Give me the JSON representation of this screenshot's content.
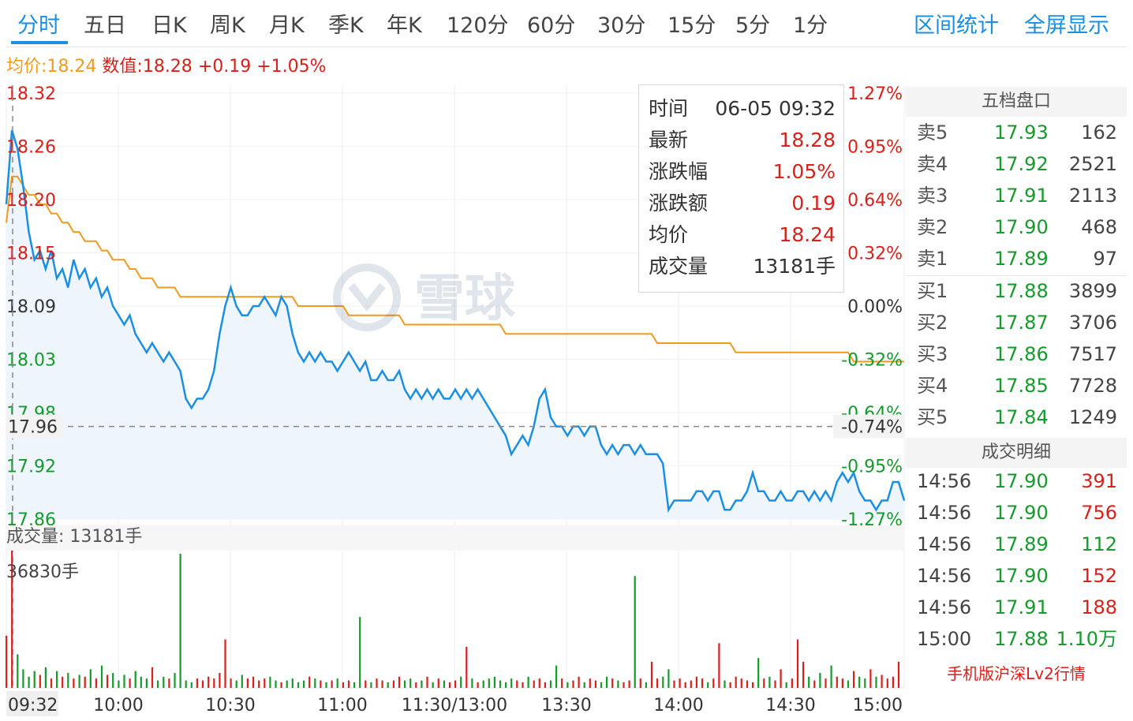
{
  "tabs": [
    "分时",
    "五日",
    "日K",
    "周K",
    "月K",
    "季K",
    "年K",
    "120分",
    "60分",
    "30分",
    "15分",
    "5分",
    "1分"
  ],
  "tools": [
    "区间统计",
    "全屏显示"
  ],
  "info": {
    "avg": "均价:18.24",
    "value": "数值:18.28",
    "change": "+0.19",
    "pct": "+1.05%"
  },
  "tooltip": [
    {
      "k": "时间",
      "v": "06-05 09:32",
      "color": "#333333"
    },
    {
      "k": "最新",
      "v": "18.28",
      "color": "#d9201b"
    },
    {
      "k": "涨跌幅",
      "v": "1.05%",
      "color": "#d9201b"
    },
    {
      "k": "涨跌额",
      "v": "0.19",
      "color": "#d9201b"
    },
    {
      "k": "均价",
      "v": "18.24",
      "color": "#d9201b"
    },
    {
      "k": "成交量",
      "v": "13181手",
      "color": "#333333"
    }
  ],
  "order_book": {
    "title": "五档盘口",
    "rows": [
      {
        "l": "卖5",
        "p": "17.93",
        "q": "162"
      },
      {
        "l": "卖4",
        "p": "17.92",
        "q": "2521"
      },
      {
        "l": "卖3",
        "p": "17.91",
        "q": "2113"
      },
      {
        "l": "卖2",
        "p": "17.90",
        "q": "468"
      },
      {
        "l": "卖1",
        "p": "17.89",
        "q": "97"
      },
      {
        "l": "买1",
        "p": "17.88",
        "q": "3899"
      },
      {
        "l": "买2",
        "p": "17.87",
        "q": "3706"
      },
      {
        "l": "买3",
        "p": "17.86",
        "q": "7517"
      },
      {
        "l": "买4",
        "p": "17.85",
        "q": "7728"
      },
      {
        "l": "买5",
        "p": "17.84",
        "q": "1249"
      }
    ]
  },
  "trades": {
    "title": "成交明细",
    "rows": [
      {
        "t": "14:56",
        "p": "17.90",
        "q": "391",
        "pc": "#159a2c",
        "qc": "#d9201b"
      },
      {
        "t": "14:56",
        "p": "17.90",
        "q": "756",
        "pc": "#159a2c",
        "qc": "#d9201b"
      },
      {
        "t": "14:56",
        "p": "17.89",
        "q": "112",
        "pc": "#159a2c",
        "qc": "#159a2c"
      },
      {
        "t": "14:56",
        "p": "17.90",
        "q": "152",
        "pc": "#159a2c",
        "qc": "#d9201b"
      },
      {
        "t": "14:56",
        "p": "17.91",
        "q": "188",
        "pc": "#159a2c",
        "qc": "#d9201b"
      },
      {
        "t": "15:00",
        "p": "17.88",
        "q": "1.10万",
        "pc": "#159a2c",
        "qc": "#159a2c"
      }
    ]
  },
  "lv2_link": "手机版沪深Lv2行情",
  "watermark_text": "雪球",
  "colors": {
    "up": "#d9201b",
    "down": "#159a2c",
    "price_line": "#1a8fe3",
    "avg_line": "#f09a1e"
  },
  "chart_data": {
    "type": "line",
    "prev_close": 18.09,
    "y_ticks": [
      "18.32",
      "18.26",
      "18.20",
      "18.15",
      "18.09",
      "18.03",
      "17.98",
      "17.92",
      "17.86"
    ],
    "pct_ticks": [
      "1.27%",
      "0.95%",
      "0.64%",
      "0.32%",
      "0.00%",
      "-0.32%",
      "-0.64%",
      "-0.95%",
      "-1.27%"
    ],
    "x_ticks": [
      "09:32",
      "10:00",
      "10:30",
      "11:00",
      "11:30/13:00",
      "13:30",
      "14:00",
      "14:30",
      "15:00"
    ],
    "ylim": [
      17.86,
      18.32
    ],
    "crosshair_price": "17.96",
    "crosshair_pct": "-0.74%",
    "volume_label": "成交量: 13181手",
    "volume_max_label": "36830手",
    "volume_max": 36830,
    "price": [
      18.2,
      18.28,
      18.26,
      18.22,
      18.17,
      18.14,
      18.15,
      18.13,
      18.15,
      18.12,
      18.13,
      18.11,
      18.14,
      18.12,
      18.13,
      18.11,
      18.12,
      18.1,
      18.11,
      18.09,
      18.08,
      18.07,
      18.08,
      18.06,
      18.05,
      18.04,
      18.05,
      18.04,
      18.03,
      18.04,
      18.03,
      18.02,
      17.99,
      17.98,
      17.99,
      17.99,
      18.0,
      18.02,
      18.06,
      18.09,
      18.11,
      18.09,
      18.08,
      18.08,
      18.09,
      18.09,
      18.1,
      18.09,
      18.08,
      18.1,
      18.09,
      18.06,
      18.04,
      18.03,
      18.04,
      18.03,
      18.04,
      18.03,
      18.03,
      18.02,
      18.03,
      18.04,
      18.03,
      18.02,
      18.03,
      18.01,
      18.01,
      18.02,
      18.01,
      18.01,
      18.02,
      18.0,
      17.99,
      18.0,
      17.99,
      18.0,
      17.99,
      18.0,
      17.99,
      17.99,
      18.0,
      17.99,
      18.0,
      17.99,
      18.0,
      17.99,
      17.98,
      17.97,
      17.96,
      17.95,
      17.93,
      17.94,
      17.95,
      17.94,
      17.96,
      17.99,
      18.0,
      17.97,
      17.96,
      17.96,
      17.95,
      17.96,
      17.96,
      17.95,
      17.96,
      17.96,
      17.94,
      17.93,
      17.94,
      17.93,
      17.94,
      17.94,
      17.93,
      17.94,
      17.93,
      17.93,
      17.93,
      17.92,
      17.87,
      17.88,
      17.88,
      17.88,
      17.88,
      17.89,
      17.89,
      17.88,
      17.89,
      17.89,
      17.87,
      17.87,
      17.88,
      17.88,
      17.89,
      17.91,
      17.89,
      17.89,
      17.88,
      17.88,
      17.89,
      17.88,
      17.88,
      17.89,
      17.89,
      17.88,
      17.89,
      17.88,
      17.89,
      17.88,
      17.9,
      17.91,
      17.9,
      17.91,
      17.89,
      17.88,
      17.88,
      17.87,
      17.88,
      17.88,
      17.9,
      17.9,
      17.88
    ],
    "avg": [
      18.18,
      18.23,
      18.23,
      18.22,
      18.21,
      18.21,
      18.2,
      18.2,
      18.19,
      18.19,
      18.18,
      18.18,
      18.17,
      18.17,
      18.16,
      18.16,
      18.16,
      18.15,
      18.15,
      18.14,
      18.14,
      18.14,
      18.13,
      18.13,
      18.12,
      18.12,
      18.12,
      18.11,
      18.11,
      18.11,
      18.11,
      18.1,
      18.1,
      18.1,
      18.1,
      18.1,
      18.1,
      18.1,
      18.1,
      18.1,
      18.1,
      18.1,
      18.1,
      18.1,
      18.1,
      18.1,
      18.1,
      18.1,
      18.1,
      18.1,
      18.1,
      18.1,
      18.09,
      18.09,
      18.09,
      18.09,
      18.09,
      18.09,
      18.09,
      18.09,
      18.09,
      18.08,
      18.08,
      18.08,
      18.08,
      18.08,
      18.08,
      18.08,
      18.08,
      18.08,
      18.08,
      18.07,
      18.07,
      18.07,
      18.07,
      18.07,
      18.07,
      18.07,
      18.07,
      18.07,
      18.07,
      18.07,
      18.07,
      18.07,
      18.07,
      18.07,
      18.07,
      18.07,
      18.07,
      18.06,
      18.06,
      18.06,
      18.06,
      18.06,
      18.06,
      18.06,
      18.06,
      18.06,
      18.06,
      18.06,
      18.06,
      18.06,
      18.06,
      18.06,
      18.06,
      18.06,
      18.06,
      18.06,
      18.06,
      18.06,
      18.06,
      18.06,
      18.06,
      18.06,
      18.06,
      18.06,
      18.05,
      18.05,
      18.05,
      18.05,
      18.05,
      18.05,
      18.05,
      18.05,
      18.05,
      18.05,
      18.05,
      18.05,
      18.05,
      18.05,
      18.04,
      18.04,
      18.04,
      18.04,
      18.04,
      18.04,
      18.04,
      18.04,
      18.04,
      18.04,
      18.04,
      18.04,
      18.04,
      18.04,
      18.04,
      18.04,
      18.04,
      18.04,
      18.04,
      18.04,
      18.04,
      18.03,
      18.03,
      18.03,
      18.03,
      18.03,
      18.03,
      18.03,
      18.03,
      18.03,
      18.03
    ],
    "volume": [
      14000,
      36830,
      9000,
      5000,
      3000,
      4500,
      3500,
      5500,
      2500,
      4500,
      3000,
      4000,
      2500,
      3500,
      3000,
      5000,
      2500,
      6000,
      3500,
      4000,
      2000,
      3500,
      2500,
      4500,
      3000,
      2500,
      5500,
      2000,
      3000,
      2500,
      4000,
      36000,
      2000,
      1500,
      2500,
      2000,
      3000,
      2500,
      4000,
      13000,
      2500,
      2000,
      3500,
      2500,
      3000,
      2000,
      2500,
      3000,
      2000,
      1500,
      2000,
      2500,
      1500,
      2000,
      3000,
      2500,
      2000,
      1500,
      2000,
      2500,
      1500,
      2000,
      1500,
      19000,
      2000,
      1500,
      2500,
      2000,
      1500,
      2000,
      3000,
      2000,
      2500,
      1500,
      2000,
      3000,
      1500,
      2500,
      2000,
      1500,
      2000,
      3000,
      11000,
      2500,
      1500,
      2000,
      2500,
      3000,
      2000,
      1500,
      2500,
      2000,
      1500,
      3000,
      2000,
      2500,
      1500,
      2000,
      6000,
      2500,
      1500,
      2000,
      3000,
      1500,
      2500,
      2000,
      1500,
      3000,
      2500,
      2000,
      1500,
      2000,
      30000,
      2500,
      1500,
      7000,
      2500,
      3000,
      5000,
      2000,
      2500,
      1500,
      2000,
      3000,
      2500,
      1500,
      2500,
      12000,
      2000,
      1500,
      3000,
      2500,
      2000,
      1500,
      8000,
      2500,
      3000,
      2000,
      5000,
      1500,
      2500,
      13000,
      7000,
      3000,
      2000,
      4000,
      2500,
      6000,
      3000,
      2500,
      2000,
      4500,
      3000,
      2500,
      5000,
      3000,
      3500,
      2500,
      3000,
      7000
    ]
  }
}
